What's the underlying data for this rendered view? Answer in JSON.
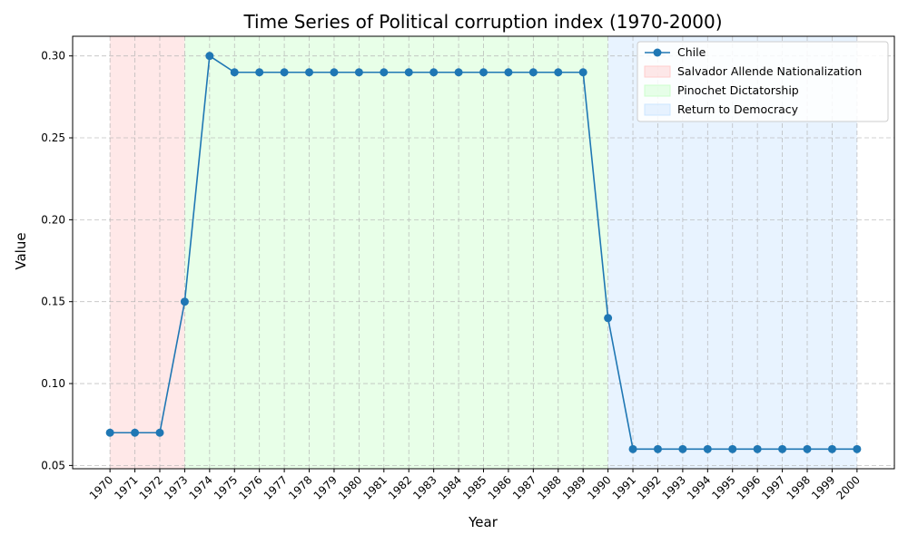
{
  "chart_data": {
    "type": "line",
    "title": "Time Series of Political corruption index (1970-2000)",
    "xlabel": "Year",
    "ylabel": "Value",
    "xlim": [
      1968.5,
      2001.5
    ],
    "ylim": [
      0.048,
      0.312
    ],
    "yticks": [
      0.05,
      0.1,
      0.15,
      0.2,
      0.25,
      0.3
    ],
    "ytick_labels": [
      "0.05",
      "0.10",
      "0.15",
      "0.20",
      "0.25",
      "0.30"
    ],
    "grid": true,
    "legend_position": "top-right",
    "x": [
      1970,
      1971,
      1972,
      1973,
      1974,
      1975,
      1976,
      1977,
      1978,
      1979,
      1980,
      1981,
      1982,
      1983,
      1984,
      1985,
      1986,
      1987,
      1988,
      1989,
      1990,
      1991,
      1992,
      1993,
      1994,
      1995,
      1996,
      1997,
      1998,
      1999,
      2000
    ],
    "xtick_labels": [
      "1970",
      "1971",
      "1972",
      "1973",
      "1974",
      "1975",
      "1976",
      "1977",
      "1978",
      "1979",
      "1980",
      "1981",
      "1982",
      "1983",
      "1984",
      "1985",
      "1986",
      "1987",
      "1988",
      "1989",
      "1990",
      "1991",
      "1992",
      "1993",
      "1994",
      "1995",
      "1996",
      "1997",
      "1998",
      "1999",
      "2000"
    ],
    "series": [
      {
        "name": "Chile",
        "color": "#1f77b4",
        "values": [
          0.07,
          0.07,
          0.07,
          0.15,
          0.3,
          0.29,
          0.29,
          0.29,
          0.29,
          0.29,
          0.29,
          0.29,
          0.29,
          0.29,
          0.29,
          0.29,
          0.29,
          0.29,
          0.29,
          0.29,
          0.14,
          0.06,
          0.06,
          0.06,
          0.06,
          0.06,
          0.06,
          0.06,
          0.06,
          0.06,
          0.06
        ]
      }
    ],
    "periods": [
      {
        "name": "Salvador Allende Nationalization",
        "start": 1970,
        "end": 1973,
        "color": "#ffcccc"
      },
      {
        "name": "Pinochet Dictatorship",
        "start": 1973,
        "end": 1990,
        "color": "#ccffcc"
      },
      {
        "name": "Return to Democracy",
        "start": 1990,
        "end": 2000,
        "color": "#cce5ff"
      }
    ]
  }
}
